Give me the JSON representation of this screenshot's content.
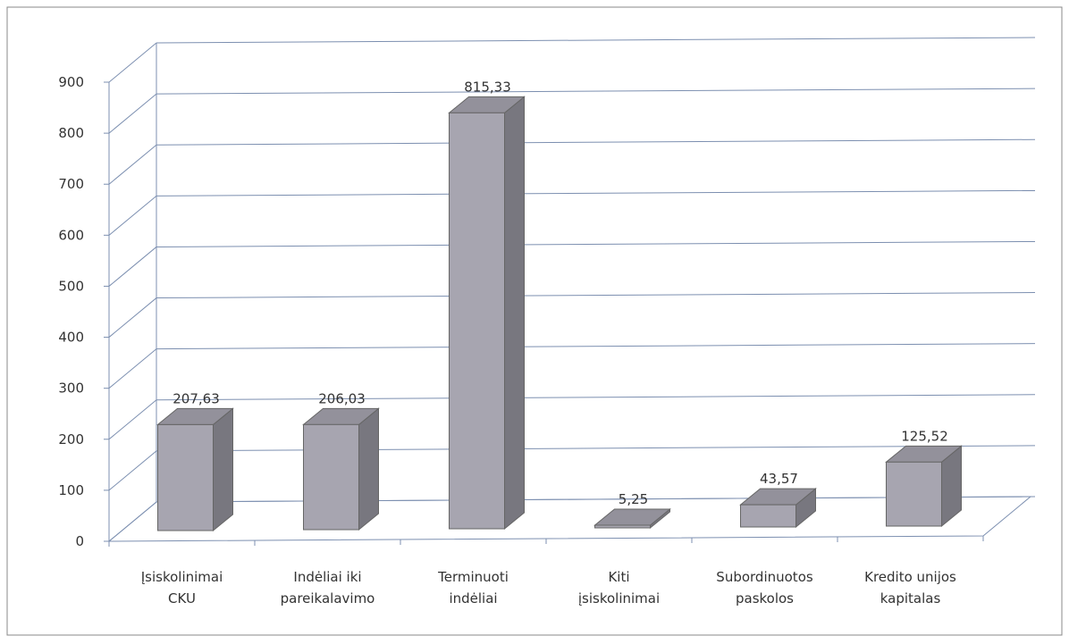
{
  "chart_data": {
    "type": "bar3d",
    "categories": [
      [
        "Įsiskolinimai",
        "CKU"
      ],
      [
        "Indėliai iki",
        "pareikalavimo"
      ],
      [
        "Terminuoti",
        "indėliai"
      ],
      [
        "Kiti",
        "įsiskolinimai"
      ],
      [
        "Subordinuotos",
        "paskolos"
      ],
      [
        "Kredito unijos",
        "kapitalas"
      ]
    ],
    "values": [
      207.63,
      206.03,
      815.33,
      5.25,
      43.57,
      125.52
    ],
    "value_labels": [
      "207,63",
      "206,03",
      "815,33",
      "5,25",
      "43,57",
      "125,52"
    ],
    "color": "#a7a5b0",
    "ylim": [
      0,
      900
    ],
    "yticks": [
      0,
      100,
      200,
      300,
      400,
      500,
      600,
      700,
      800,
      900
    ],
    "grid": true
  }
}
